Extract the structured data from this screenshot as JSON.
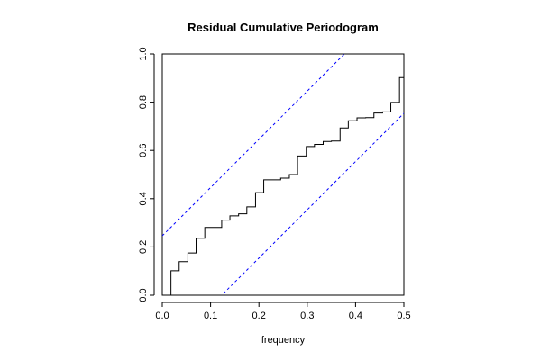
{
  "chart_data": {
    "type": "line",
    "title": "Residual Cumulative Periodogram",
    "xlabel": "frequency",
    "ylabel": "",
    "xlim": [
      0.0,
      0.5
    ],
    "ylim": [
      0.0,
      1.0
    ],
    "xticks": [
      "0.0",
      "0.1",
      "0.2",
      "0.3",
      "0.4",
      "0.5"
    ],
    "yticks": [
      "0.0",
      "0.2",
      "0.4",
      "0.6",
      "0.8",
      "1.0"
    ],
    "grid": false,
    "series": [
      {
        "style": "step",
        "color": "#000000",
        "x": [
          0.018,
          0.035,
          0.053,
          0.07,
          0.088,
          0.105,
          0.123,
          0.14,
          0.158,
          0.175,
          0.193,
          0.21,
          0.228,
          0.245,
          0.263,
          0.28,
          0.298,
          0.315,
          0.333,
          0.35,
          0.368,
          0.385,
          0.403,
          0.421,
          0.438,
          0.456,
          0.473,
          0.491,
          0.5
        ],
        "y": [
          0.101,
          0.139,
          0.175,
          0.236,
          0.281,
          0.281,
          0.311,
          0.329,
          0.337,
          0.366,
          0.425,
          0.478,
          0.478,
          0.485,
          0.5,
          0.577,
          0.616,
          0.625,
          0.637,
          0.639,
          0.693,
          0.723,
          0.735,
          0.736,
          0.755,
          0.76,
          0.799,
          0.902,
          0.966
        ]
      },
      {
        "style": "dashed",
        "color": "#0000ff",
        "x": [
          0.0,
          0.5
        ],
        "y": [
          0.246,
          1.246
        ]
      },
      {
        "style": "dashed",
        "color": "#0000ff",
        "x": [
          0.0,
          0.5
        ],
        "y": [
          -0.246,
          0.754
        ]
      }
    ]
  }
}
